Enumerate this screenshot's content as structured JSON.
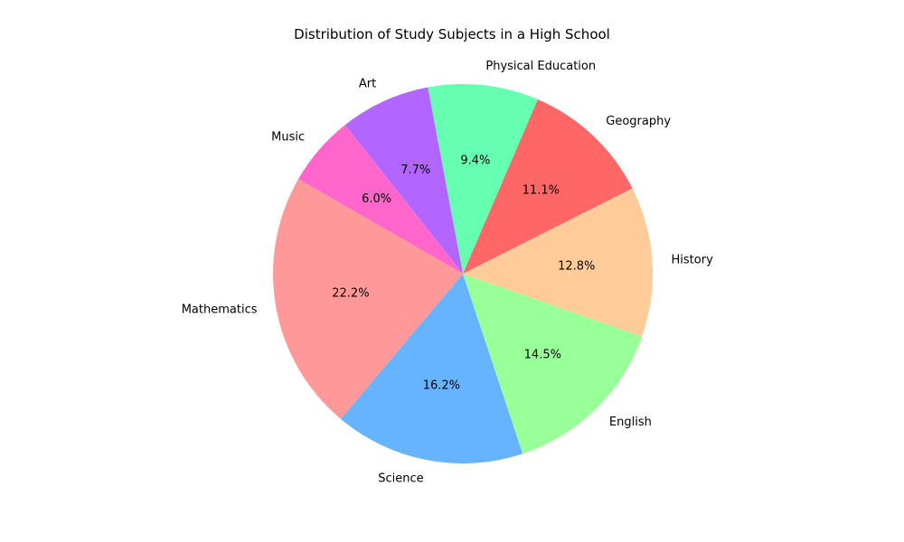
{
  "chart_data": {
    "type": "pie",
    "title": "Distribution of Study Subjects in a High School",
    "slices": [
      {
        "label": "Mathematics",
        "value": 22.2,
        "pct_label": "22.2%",
        "color": "#ff9999"
      },
      {
        "label": "Science",
        "value": 16.2,
        "pct_label": "16.2%",
        "color": "#66b3ff"
      },
      {
        "label": "English",
        "value": 14.5,
        "pct_label": "14.5%",
        "color": "#99ff99"
      },
      {
        "label": "History",
        "value": 12.8,
        "pct_label": "12.8%",
        "color": "#ffcc99"
      },
      {
        "label": "Geography",
        "value": 11.1,
        "pct_label": "11.1%",
        "color": "#ff6666"
      },
      {
        "label": "Physical Education",
        "value": 9.4,
        "pct_label": "9.4%",
        "color": "#66ffb2"
      },
      {
        "label": "Art",
        "value": 7.7,
        "pct_label": "7.7%",
        "color": "#b266ff"
      },
      {
        "label": "Music",
        "value": 6.0,
        "pct_label": "6.0%",
        "color": "#ff66cc"
      }
    ],
    "start_angle_deg": 150,
    "direction": "counterclockwise",
    "legend": "none"
  }
}
